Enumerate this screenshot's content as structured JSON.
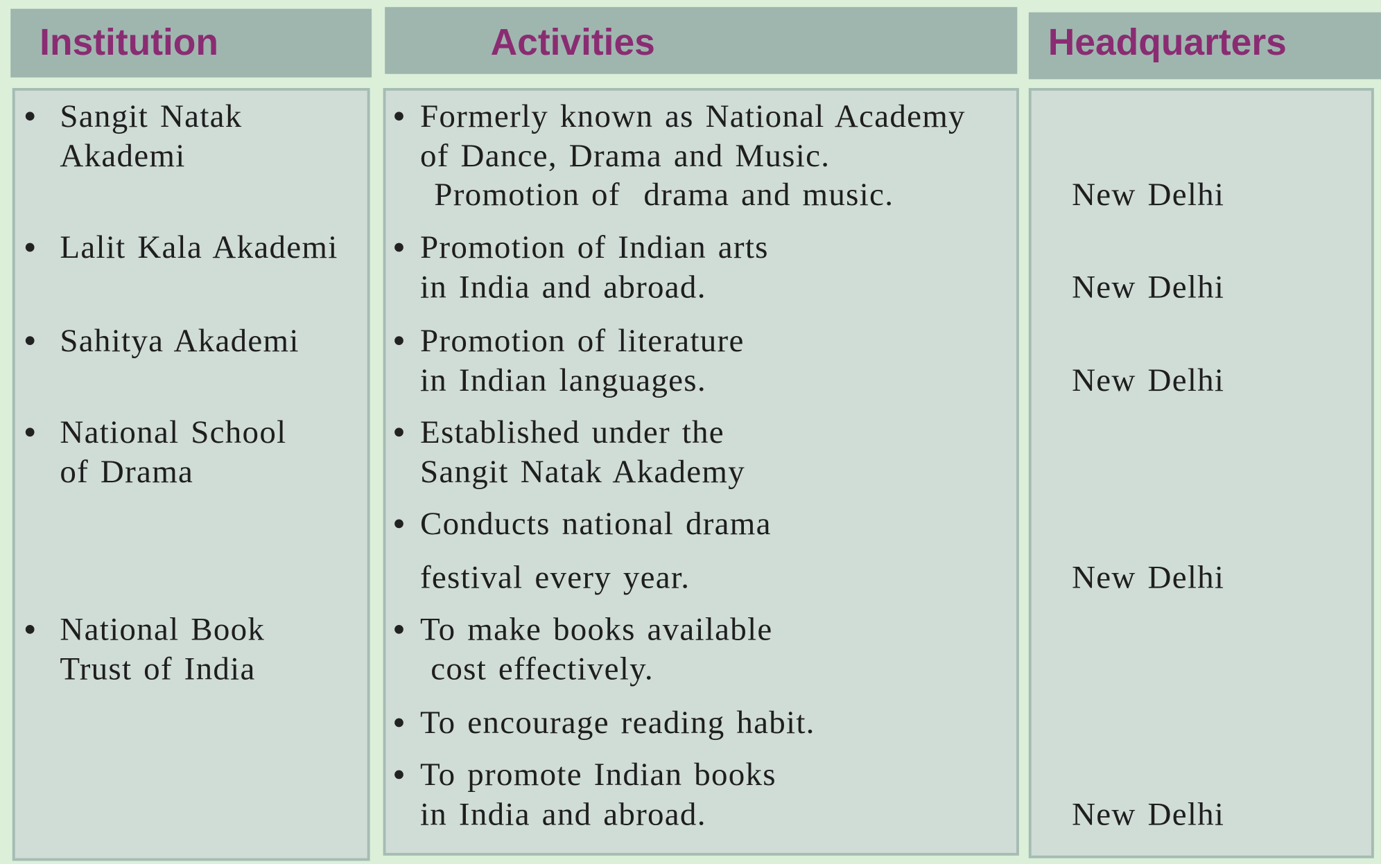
{
  "table": {
    "headers": [
      "Institution",
      "Activities",
      "Headquarters"
    ],
    "rows": [
      {
        "institution": [
          "Sangit Natak",
          "Akademi"
        ],
        "activities": [
          [
            "Formerly known as National Academy",
            "of Dance, Drama and Music.",
            "Promotion of  drama and music."
          ]
        ],
        "headquarters": "New Delhi"
      },
      {
        "institution": [
          "Lalit Kala Akademi"
        ],
        "activities": [
          [
            "Promotion of Indian arts",
            "in India and abroad."
          ]
        ],
        "headquarters": "New Delhi"
      },
      {
        "institution": [
          "Sahitya Akademi"
        ],
        "activities": [
          [
            "Promotion of literature",
            "in Indian languages."
          ]
        ],
        "headquarters": "New Delhi"
      },
      {
        "institution": [
          "National School",
          "of Drama"
        ],
        "activities": [
          [
            "Established under the",
            "Sangit Natak Akademy"
          ],
          [
            "Conducts national drama",
            "festival every year."
          ]
        ],
        "headquarters": "New Delhi"
      },
      {
        "institution": [
          "National Book",
          "Trust of India"
        ],
        "activities": [
          [
            "To make books available",
            "cost effectively."
          ],
          [
            "To encourage reading habit."
          ],
          [
            "To promote Indian books",
            "in India and abroad."
          ]
        ],
        "headquarters": "New Delhi"
      }
    ]
  }
}
